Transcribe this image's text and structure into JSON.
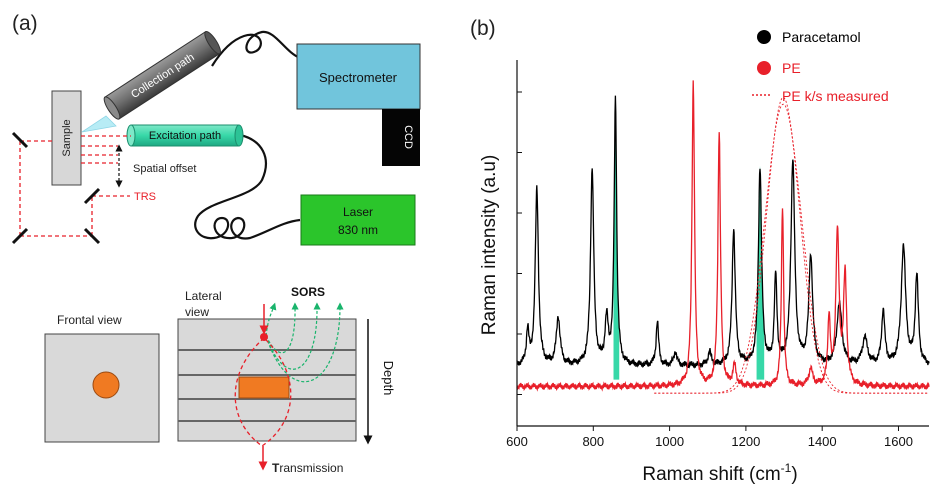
{
  "panel_a": {
    "label": "(a)",
    "sample": "Sample",
    "collection": "Collection path",
    "excitation": "Excitation path",
    "spectrometer": "Spectrometer",
    "ccd": "CCD",
    "laser_line1": "Laser",
    "laser_line2": "830 nm",
    "spatial_offset": "Spatial offset",
    "trs": "TRS",
    "frontal": "Frontal view",
    "lateral_line1": "Lateral",
    "lateral_line2": "view",
    "sors": "SORS",
    "depth": "Depth",
    "transmission_bold": "T",
    "transmission_rest": "ransmission",
    "colors": {
      "spectrometer": "#71c5dc",
      "laser": "#2bc52b",
      "excitation": "#37d8a8",
      "inclusion": "#f07a22",
      "trs": "#e8202a",
      "sors": "#19b46c"
    }
  },
  "panel_b": {
    "label": "(b)",
    "chart_data": {
      "type": "line",
      "xlabel": "Raman shift (cm",
      "xlabel_sup": "-1",
      "xlabel_end": ")",
      "ylabel": "Raman intensity (a.u)",
      "xlim": [
        600,
        1680
      ],
      "xticks": [
        "600",
        "800",
        "1000",
        "1200",
        "1400",
        "1600"
      ],
      "legend": [
        {
          "name": "Paracetamol",
          "color": "#000000",
          "marker": "dot"
        },
        {
          "name": "PE",
          "color": "#e8202a",
          "marker": "dot"
        },
        {
          "name": "PE k/s measured",
          "color": "#e8202a",
          "marker": "dotted"
        }
      ],
      "highlight_color": "#37d8a8",
      "highlights": [
        [
          853,
          868
        ],
        [
          1228,
          1248
        ]
      ],
      "series": [
        {
          "color": "#000000",
          "baseline": 0.1,
          "peaks": [
            [
              628,
              0.1,
              4
            ],
            [
              652,
              0.52,
              5
            ],
            [
              708,
              0.14,
              6
            ],
            [
              797,
              0.58,
              5
            ],
            [
              835,
              0.13,
              5
            ],
            [
              858,
              0.78,
              4
            ],
            [
              968,
              0.13,
              4
            ],
            [
              1015,
              0.04,
              5
            ],
            [
              1105,
              0.04,
              5
            ],
            [
              1168,
              0.4,
              5
            ],
            [
              1237,
              0.58,
              5
            ],
            [
              1278,
              0.26,
              4
            ],
            [
              1323,
              0.6,
              6
            ],
            [
              1370,
              0.32,
              6
            ],
            [
              1445,
              0.18,
              8
            ],
            [
              1512,
              0.08,
              8
            ],
            [
              1560,
              0.16,
              5
            ],
            [
              1613,
              0.35,
              7
            ],
            [
              1648,
              0.26,
              5
            ]
          ]
        },
        {
          "color": "#e8202a",
          "baseline": 0.04,
          "peaks": [
            [
              1062,
              0.9,
              4
            ],
            [
              1130,
              0.75,
              4
            ],
            [
              1170,
              0.06,
              5
            ],
            [
              1296,
              0.53,
              3.5
            ],
            [
              1370,
              0.05,
              6
            ],
            [
              1418,
              0.2,
              4
            ],
            [
              1440,
              0.45,
              5
            ],
            [
              1460,
              0.32,
              5
            ]
          ]
        }
      ],
      "dotted_curve": {
        "center": 1298,
        "height": 0.87,
        "width": 62,
        "left": 960,
        "right": 1680
      }
    }
  }
}
